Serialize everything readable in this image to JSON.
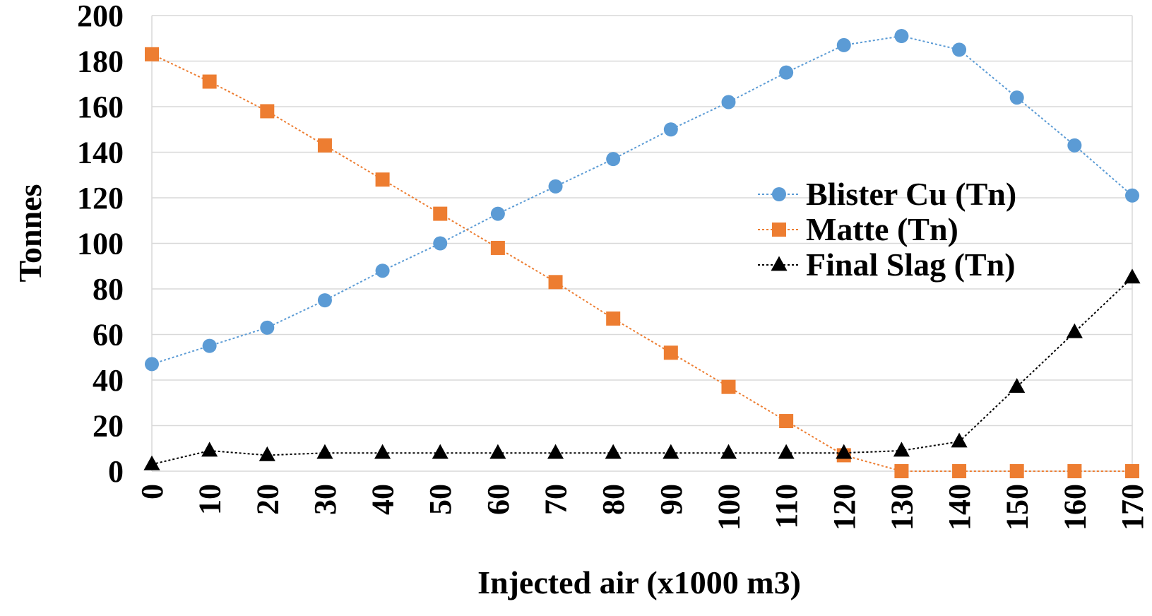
{
  "chart_data": {
    "type": "line",
    "xlabel": "Injected air (x1000 m3)",
    "ylabel": "Tonnes",
    "x": [
      0,
      10,
      20,
      30,
      40,
      50,
      60,
      70,
      80,
      90,
      100,
      110,
      120,
      130,
      140,
      150,
      160,
      170
    ],
    "x_tick_labels": [
      "0",
      "10",
      "20",
      "30",
      "40",
      "50",
      "60",
      "70",
      "80",
      "90",
      "100",
      "110",
      "120",
      "130",
      "140",
      "150",
      "160",
      "170"
    ],
    "ylim": [
      0,
      200
    ],
    "y_ticks": [
      0,
      20,
      40,
      60,
      80,
      100,
      120,
      140,
      160,
      180,
      200
    ],
    "y_tick_labels": [
      "0",
      "20",
      "40",
      "60",
      "80",
      "100",
      "120",
      "140",
      "160",
      "180",
      "200"
    ],
    "grid": true,
    "legend_position": "right",
    "series": [
      {
        "name": "Blister Cu (Tn)",
        "color": "#5B9BD5",
        "marker": "circle",
        "values": [
          47,
          55,
          63,
          75,
          88,
          100,
          113,
          125,
          137,
          150,
          162,
          175,
          187,
          191,
          185,
          164,
          143,
          121
        ]
      },
      {
        "name": "Matte (Tn)",
        "color": "#ED7D31",
        "marker": "square",
        "values": [
          183,
          171,
          158,
          143,
          128,
          113,
          98,
          83,
          67,
          52,
          37,
          22,
          7,
          0,
          0,
          0,
          0,
          0
        ]
      },
      {
        "name": "Final Slag (Tn)",
        "color": "#000000",
        "marker": "triangle",
        "values": [
          3,
          9,
          7,
          8,
          8,
          8,
          8,
          8,
          8,
          8,
          8,
          8,
          8,
          9,
          13,
          37,
          61,
          85
        ]
      }
    ]
  }
}
